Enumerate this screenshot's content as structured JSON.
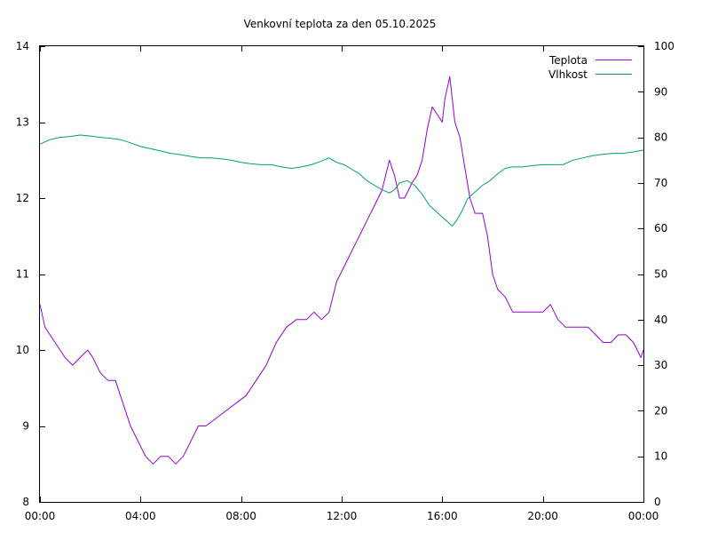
{
  "chart_data": {
    "type": "line",
    "title": "Venkovní teplota za den 05.10.2025",
    "xlabel": "",
    "ylabel": "",
    "y2label": "",
    "grid": false,
    "legend_position": "top-right",
    "x_domain_hours": [
      0,
      24
    ],
    "x_ticks": [
      {
        "hour": 0,
        "label": "00:00"
      },
      {
        "hour": 4,
        "label": "04:00"
      },
      {
        "hour": 8,
        "label": "08:00"
      },
      {
        "hour": 12,
        "label": "12:00"
      },
      {
        "hour": 16,
        "label": "16:00"
      },
      {
        "hour": 20,
        "label": "20:00"
      },
      {
        "hour": 24,
        "label": "00:00"
      }
    ],
    "ylim": [
      8,
      14
    ],
    "y_ticks": [
      8,
      9,
      10,
      11,
      12,
      13,
      14
    ],
    "y2lim": [
      0,
      100
    ],
    "y2_ticks": [
      0,
      10,
      20,
      30,
      40,
      50,
      60,
      70,
      80,
      90,
      100
    ],
    "series": [
      {
        "name": "Teplota",
        "axis": "left",
        "color": "#9400d3",
        "points": [
          [
            0.0,
            10.6
          ],
          [
            0.2,
            10.3
          ],
          [
            0.4,
            10.2
          ],
          [
            0.6,
            10.1
          ],
          [
            0.8,
            10.0
          ],
          [
            1.0,
            9.9
          ],
          [
            1.3,
            9.8
          ],
          [
            1.6,
            9.9
          ],
          [
            1.9,
            10.0
          ],
          [
            2.1,
            9.9
          ],
          [
            2.4,
            9.7
          ],
          [
            2.7,
            9.6
          ],
          [
            3.0,
            9.6
          ],
          [
            3.3,
            9.3
          ],
          [
            3.6,
            9.0
          ],
          [
            3.9,
            8.8
          ],
          [
            4.2,
            8.6
          ],
          [
            4.5,
            8.5
          ],
          [
            4.8,
            8.6
          ],
          [
            5.1,
            8.6
          ],
          [
            5.4,
            8.5
          ],
          [
            5.7,
            8.6
          ],
          [
            6.0,
            8.8
          ],
          [
            6.3,
            9.0
          ],
          [
            6.6,
            9.0
          ],
          [
            7.0,
            9.1
          ],
          [
            7.4,
            9.2
          ],
          [
            7.8,
            9.3
          ],
          [
            8.2,
            9.4
          ],
          [
            8.6,
            9.6
          ],
          [
            9.0,
            9.8
          ],
          [
            9.4,
            10.1
          ],
          [
            9.8,
            10.3
          ],
          [
            10.2,
            10.4
          ],
          [
            10.6,
            10.4
          ],
          [
            10.9,
            10.5
          ],
          [
            11.2,
            10.4
          ],
          [
            11.5,
            10.5
          ],
          [
            11.8,
            10.9
          ],
          [
            12.1,
            11.1
          ],
          [
            12.4,
            11.3
          ],
          [
            12.7,
            11.5
          ],
          [
            13.0,
            11.7
          ],
          [
            13.3,
            11.9
          ],
          [
            13.6,
            12.1
          ],
          [
            13.9,
            12.5
          ],
          [
            14.1,
            12.3
          ],
          [
            14.3,
            12.0
          ],
          [
            14.5,
            12.0
          ],
          [
            14.8,
            12.2
          ],
          [
            15.0,
            12.3
          ],
          [
            15.2,
            12.5
          ],
          [
            15.4,
            12.9
          ],
          [
            15.6,
            13.2
          ],
          [
            15.8,
            13.1
          ],
          [
            16.0,
            13.0
          ],
          [
            16.1,
            13.3
          ],
          [
            16.3,
            13.6
          ],
          [
            16.5,
            13.0
          ],
          [
            16.7,
            12.8
          ],
          [
            16.9,
            12.4
          ],
          [
            17.1,
            12.0
          ],
          [
            17.3,
            11.8
          ],
          [
            17.6,
            11.8
          ],
          [
            17.8,
            11.5
          ],
          [
            18.0,
            11.0
          ],
          [
            18.2,
            10.8
          ],
          [
            18.5,
            10.7
          ],
          [
            18.8,
            10.5
          ],
          [
            19.1,
            10.5
          ],
          [
            19.4,
            10.5
          ],
          [
            19.7,
            10.5
          ],
          [
            20.0,
            10.5
          ],
          [
            20.3,
            10.6
          ],
          [
            20.6,
            10.4
          ],
          [
            20.9,
            10.3
          ],
          [
            21.2,
            10.3
          ],
          [
            21.5,
            10.3
          ],
          [
            21.8,
            10.3
          ],
          [
            22.1,
            10.2
          ],
          [
            22.4,
            10.1
          ],
          [
            22.7,
            10.1
          ],
          [
            23.0,
            10.2
          ],
          [
            23.3,
            10.2
          ],
          [
            23.6,
            10.1
          ],
          [
            23.9,
            9.9
          ],
          [
            24.0,
            10.0
          ]
        ]
      },
      {
        "name": "Vlhkost",
        "axis": "right",
        "color": "#009e73",
        "points": [
          [
            0.0,
            78.5
          ],
          [
            0.4,
            79.5
          ],
          [
            0.8,
            80.0
          ],
          [
            1.2,
            80.2
          ],
          [
            1.6,
            80.5
          ],
          [
            2.0,
            80.3
          ],
          [
            2.4,
            80.0
          ],
          [
            2.8,
            79.8
          ],
          [
            3.2,
            79.5
          ],
          [
            3.6,
            78.8
          ],
          [
            4.0,
            78.0
          ],
          [
            4.4,
            77.5
          ],
          [
            4.8,
            77.0
          ],
          [
            5.2,
            76.5
          ],
          [
            5.6,
            76.2
          ],
          [
            6.0,
            75.8
          ],
          [
            6.4,
            75.5
          ],
          [
            6.8,
            75.5
          ],
          [
            7.2,
            75.3
          ],
          [
            7.6,
            75.0
          ],
          [
            8.0,
            74.5
          ],
          [
            8.4,
            74.2
          ],
          [
            8.8,
            74.0
          ],
          [
            9.2,
            74.0
          ],
          [
            9.6,
            73.5
          ],
          [
            10.0,
            73.2
          ],
          [
            10.4,
            73.5
          ],
          [
            10.8,
            74.0
          ],
          [
            11.2,
            74.8
          ],
          [
            11.5,
            75.5
          ],
          [
            11.8,
            74.5
          ],
          [
            12.1,
            74.0
          ],
          [
            12.4,
            73.0
          ],
          [
            12.7,
            72.0
          ],
          [
            13.0,
            70.5
          ],
          [
            13.3,
            69.5
          ],
          [
            13.6,
            68.5
          ],
          [
            13.9,
            67.8
          ],
          [
            14.1,
            68.5
          ],
          [
            14.3,
            70.0
          ],
          [
            14.6,
            70.5
          ],
          [
            14.9,
            69.5
          ],
          [
            15.2,
            67.5
          ],
          [
            15.5,
            65.0
          ],
          [
            15.8,
            63.5
          ],
          [
            16.0,
            62.5
          ],
          [
            16.2,
            61.5
          ],
          [
            16.4,
            60.5
          ],
          [
            16.6,
            62.0
          ],
          [
            16.8,
            64.0
          ],
          [
            17.0,
            66.5
          ],
          [
            17.3,
            68.0
          ],
          [
            17.6,
            69.5
          ],
          [
            17.9,
            70.5
          ],
          [
            18.2,
            72.0
          ],
          [
            18.5,
            73.2
          ],
          [
            18.8,
            73.5
          ],
          [
            19.2,
            73.5
          ],
          [
            19.6,
            73.8
          ],
          [
            20.0,
            74.0
          ],
          [
            20.4,
            74.0
          ],
          [
            20.8,
            74.0
          ],
          [
            21.2,
            75.0
          ],
          [
            21.6,
            75.5
          ],
          [
            22.0,
            76.0
          ],
          [
            22.4,
            76.3
          ],
          [
            22.8,
            76.5
          ],
          [
            23.2,
            76.5
          ],
          [
            23.6,
            76.8
          ],
          [
            24.0,
            77.2
          ]
        ]
      }
    ]
  }
}
